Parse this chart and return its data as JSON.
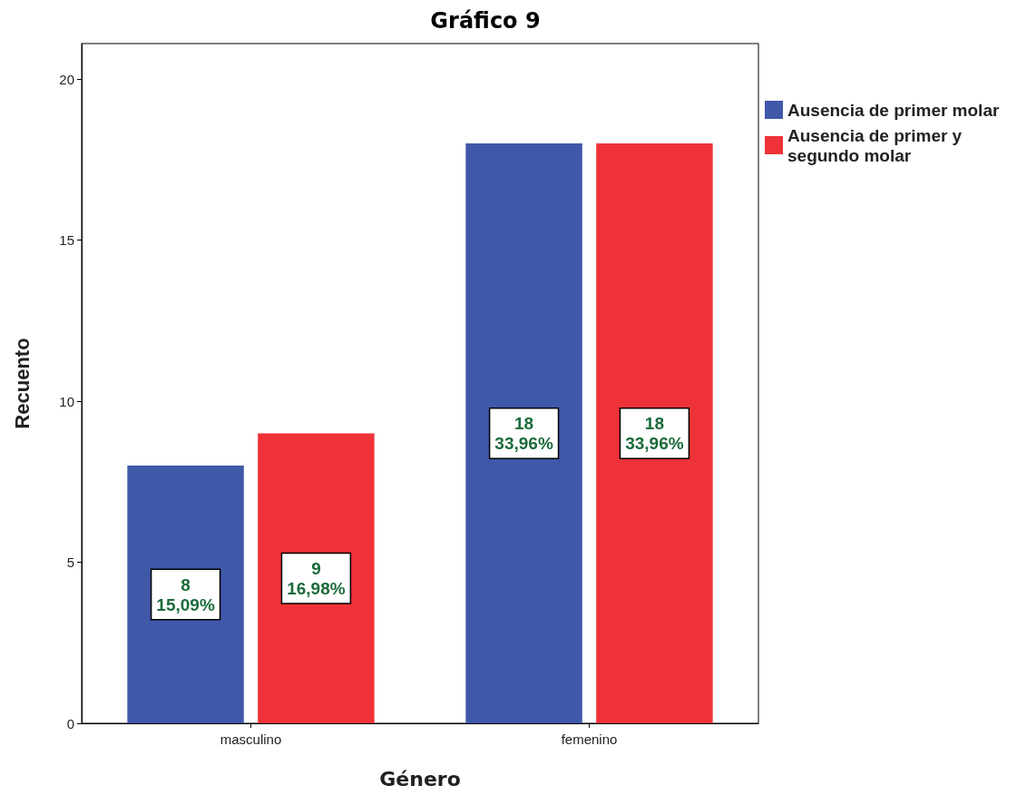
{
  "chart_data": {
    "type": "bar",
    "title": "Gráfico 9",
    "xlabel": "Género",
    "ylabel": "Recuento",
    "categories": [
      "masculino",
      "femenino"
    ],
    "series": [
      {
        "name": "Ausencia de primer molar",
        "color": "#3f58a8",
        "values": [
          8,
          18
        ],
        "value_labels": [
          "8\n15,09%",
          "18\n33,96%"
        ]
      },
      {
        "name": "Ausencia de primer y segundo molar",
        "color": "#ee3238",
        "values": [
          9,
          18
        ],
        "value_labels": [
          "9\n16,98%",
          "18\n33,96%"
        ]
      }
    ],
    "ylim": [
      0,
      21.1
    ],
    "yticks": [
      0,
      5,
      10,
      15,
      20
    ],
    "grid": false,
    "legend": "top right"
  }
}
